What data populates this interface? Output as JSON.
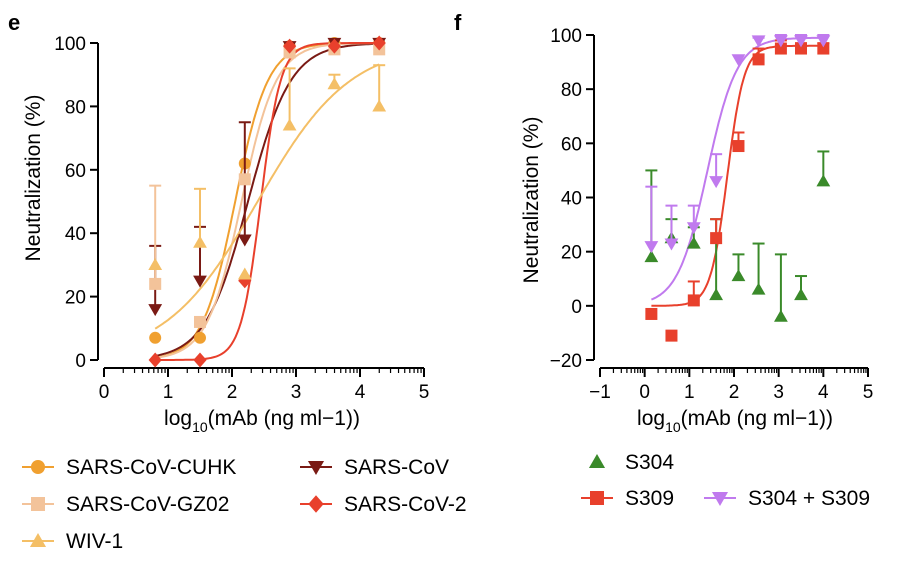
{
  "panels": [
    {
      "label": "e"
    },
    {
      "label": "f"
    }
  ],
  "chart_data": [
    {
      "type": "scatter",
      "panel": "e",
      "xlabel_main": "log",
      "xlabel_sub": "10",
      "xlabel_rest": "(mAb (ng ml−1))",
      "ylabel": "Neutralization (%)",
      "xlim": [
        0,
        5
      ],
      "ylim": [
        0,
        100
      ],
      "xticks": [
        "0",
        "1",
        "2",
        "3",
        "4",
        "5"
      ],
      "yticks": [
        "0",
        "20",
        "40",
        "60",
        "80",
        "100"
      ],
      "fitted_curves": true,
      "legend_position": "bottom",
      "series": [
        {
          "name": "SARS-CoV-CUHK",
          "marker": "circle",
          "color": "#f0a030",
          "x": [
            0.8,
            1.5,
            2.2,
            2.9,
            3.6,
            4.3
          ],
          "y": [
            7,
            7,
            62,
            99,
            100,
            100
          ],
          "err": [
            0,
            0,
            0,
            0,
            0,
            0
          ],
          "fit": {
            "ec50": 2.05,
            "hill": 1.7,
            "bottom": 0,
            "top": 100
          }
        },
        {
          "name": "SARS-CoV",
          "marker": "triangle-down",
          "color": "#7a1a14",
          "x": [
            0.8,
            1.5,
            2.2,
            2.9,
            3.6,
            4.3
          ],
          "y": [
            16,
            25,
            38,
            99,
            100,
            100
          ],
          "err": [
            20,
            17,
            37,
            0,
            0,
            0
          ],
          "fit": {
            "ec50": 2.25,
            "hill": 1.3,
            "bottom": 0,
            "top": 100
          }
        },
        {
          "name": "SARS-CoV-GZ02",
          "marker": "square",
          "color": "#f3c39a",
          "x": [
            0.8,
            1.5,
            2.2,
            2.9,
            3.6,
            4.3
          ],
          "y": [
            24,
            12,
            57,
            97,
            98,
            98
          ],
          "err": [
            31,
            0,
            0,
            0,
            0,
            0
          ],
          "fit": {
            "ec50": 2.15,
            "hill": 1.6,
            "bottom": 0,
            "top": 100
          }
        },
        {
          "name": "SARS-CoV-2",
          "marker": "diamond",
          "color": "#e8402c",
          "x": [
            0.8,
            1.5,
            2.2,
            2.9,
            3.6,
            4.3
          ],
          "y": [
            0,
            0,
            25,
            99,
            99,
            100
          ],
          "err": [
            0,
            0,
            0,
            0,
            0,
            0
          ],
          "fit": {
            "ec50": 2.45,
            "hill": 2.8,
            "bottom": 0,
            "top": 100
          }
        },
        {
          "name": "WIV-1",
          "marker": "triangle-up",
          "color": "#f4bf66",
          "x": [
            0.8,
            1.5,
            2.2,
            2.9,
            3.6,
            4.3
          ],
          "y": [
            30,
            37,
            27,
            74,
            87,
            80
          ],
          "err": [
            0,
            17,
            0,
            18,
            3,
            13
          ],
          "fit": {
            "ec50": 2.4,
            "hill": 0.6,
            "bottom": 0,
            "top": 100
          }
        }
      ]
    },
    {
      "type": "scatter",
      "panel": "f",
      "xlabel_main": "log",
      "xlabel_sub": "10",
      "xlabel_rest": "(mAb (ng ml−1))",
      "ylabel": "Neutralization (%)",
      "xlim": [
        -1,
        5
      ],
      "ylim": [
        -20,
        100
      ],
      "xticks": [
        "−1",
        "0",
        "1",
        "2",
        "3",
        "4",
        "5"
      ],
      "yticks": [
        "−20",
        "0",
        "20",
        "40",
        "60",
        "80",
        "100"
      ],
      "fitted_curves": true,
      "legend_position": "bottom",
      "series": [
        {
          "name": "S304",
          "marker": "triangle-up",
          "color": "#3a8a2a",
          "x": [
            0.15,
            0.6,
            1.1,
            1.6,
            2.1,
            2.55,
            3.05,
            3.5,
            4.0
          ],
          "y": [
            18,
            25,
            23,
            4,
            11,
            6,
            -4,
            4,
            46
          ],
          "err": [
            32,
            7,
            6,
            28,
            8,
            17,
            23,
            7,
            11
          ],
          "fit": null
        },
        {
          "name": "S309",
          "marker": "square",
          "color": "#e8402c",
          "x": [
            0.15,
            0.6,
            1.1,
            1.6,
            2.1,
            2.55,
            3.05,
            3.5,
            4.0
          ],
          "y": [
            -3,
            -11,
            2,
            25,
            59,
            91,
            95,
            95,
            95
          ],
          "err": [
            0,
            0,
            7,
            7,
            5,
            4,
            3,
            2,
            2
          ],
          "fit": {
            "ec50": 1.85,
            "hill": 2.3,
            "bottom": 0,
            "top": 96
          }
        },
        {
          "name": "S304 + S309",
          "marker": "triangle-down",
          "color": "#c07aee",
          "x": [
            0.15,
            0.6,
            1.1,
            1.6,
            2.1,
            2.55,
            3.05,
            3.5,
            4.0
          ],
          "y": [
            22,
            23,
            29,
            46,
            91,
            98,
            98,
            98,
            98
          ],
          "err": [
            22,
            14,
            8,
            10,
            0,
            1,
            2,
            2,
            2
          ],
          "fit": {
            "ec50": 1.4,
            "hill": 1.3,
            "bottom": 0,
            "top": 99
          }
        }
      ]
    }
  ]
}
